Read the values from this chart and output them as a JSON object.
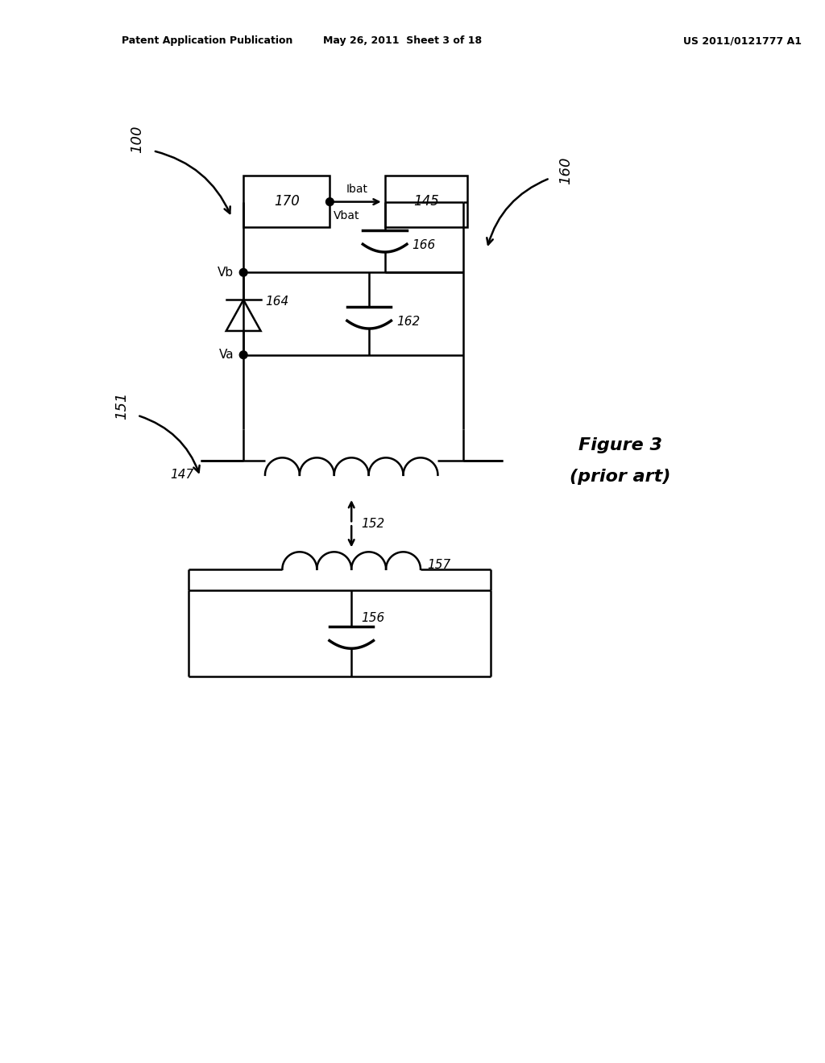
{
  "bg_color": "#ffffff",
  "header_left": "Patent Application Publication",
  "header_mid": "May 26, 2011  Sheet 3 of 18",
  "header_right": "US 2011/0121777 A1",
  "figure_label_line1": "Figure 3",
  "figure_label_line2": "(prior art)",
  "label_100": "100",
  "label_160": "160",
  "label_151": "151",
  "label_147": "147",
  "label_152": "152",
  "label_157": "157",
  "label_156": "156",
  "label_162": "162",
  "label_166": "166",
  "label_164": "164",
  "label_170": "170",
  "label_145": "145",
  "label_Vb": "Vb",
  "label_Va": "Va",
  "label_Vbat": "Vbat",
  "label_Ibat": "Ibat"
}
